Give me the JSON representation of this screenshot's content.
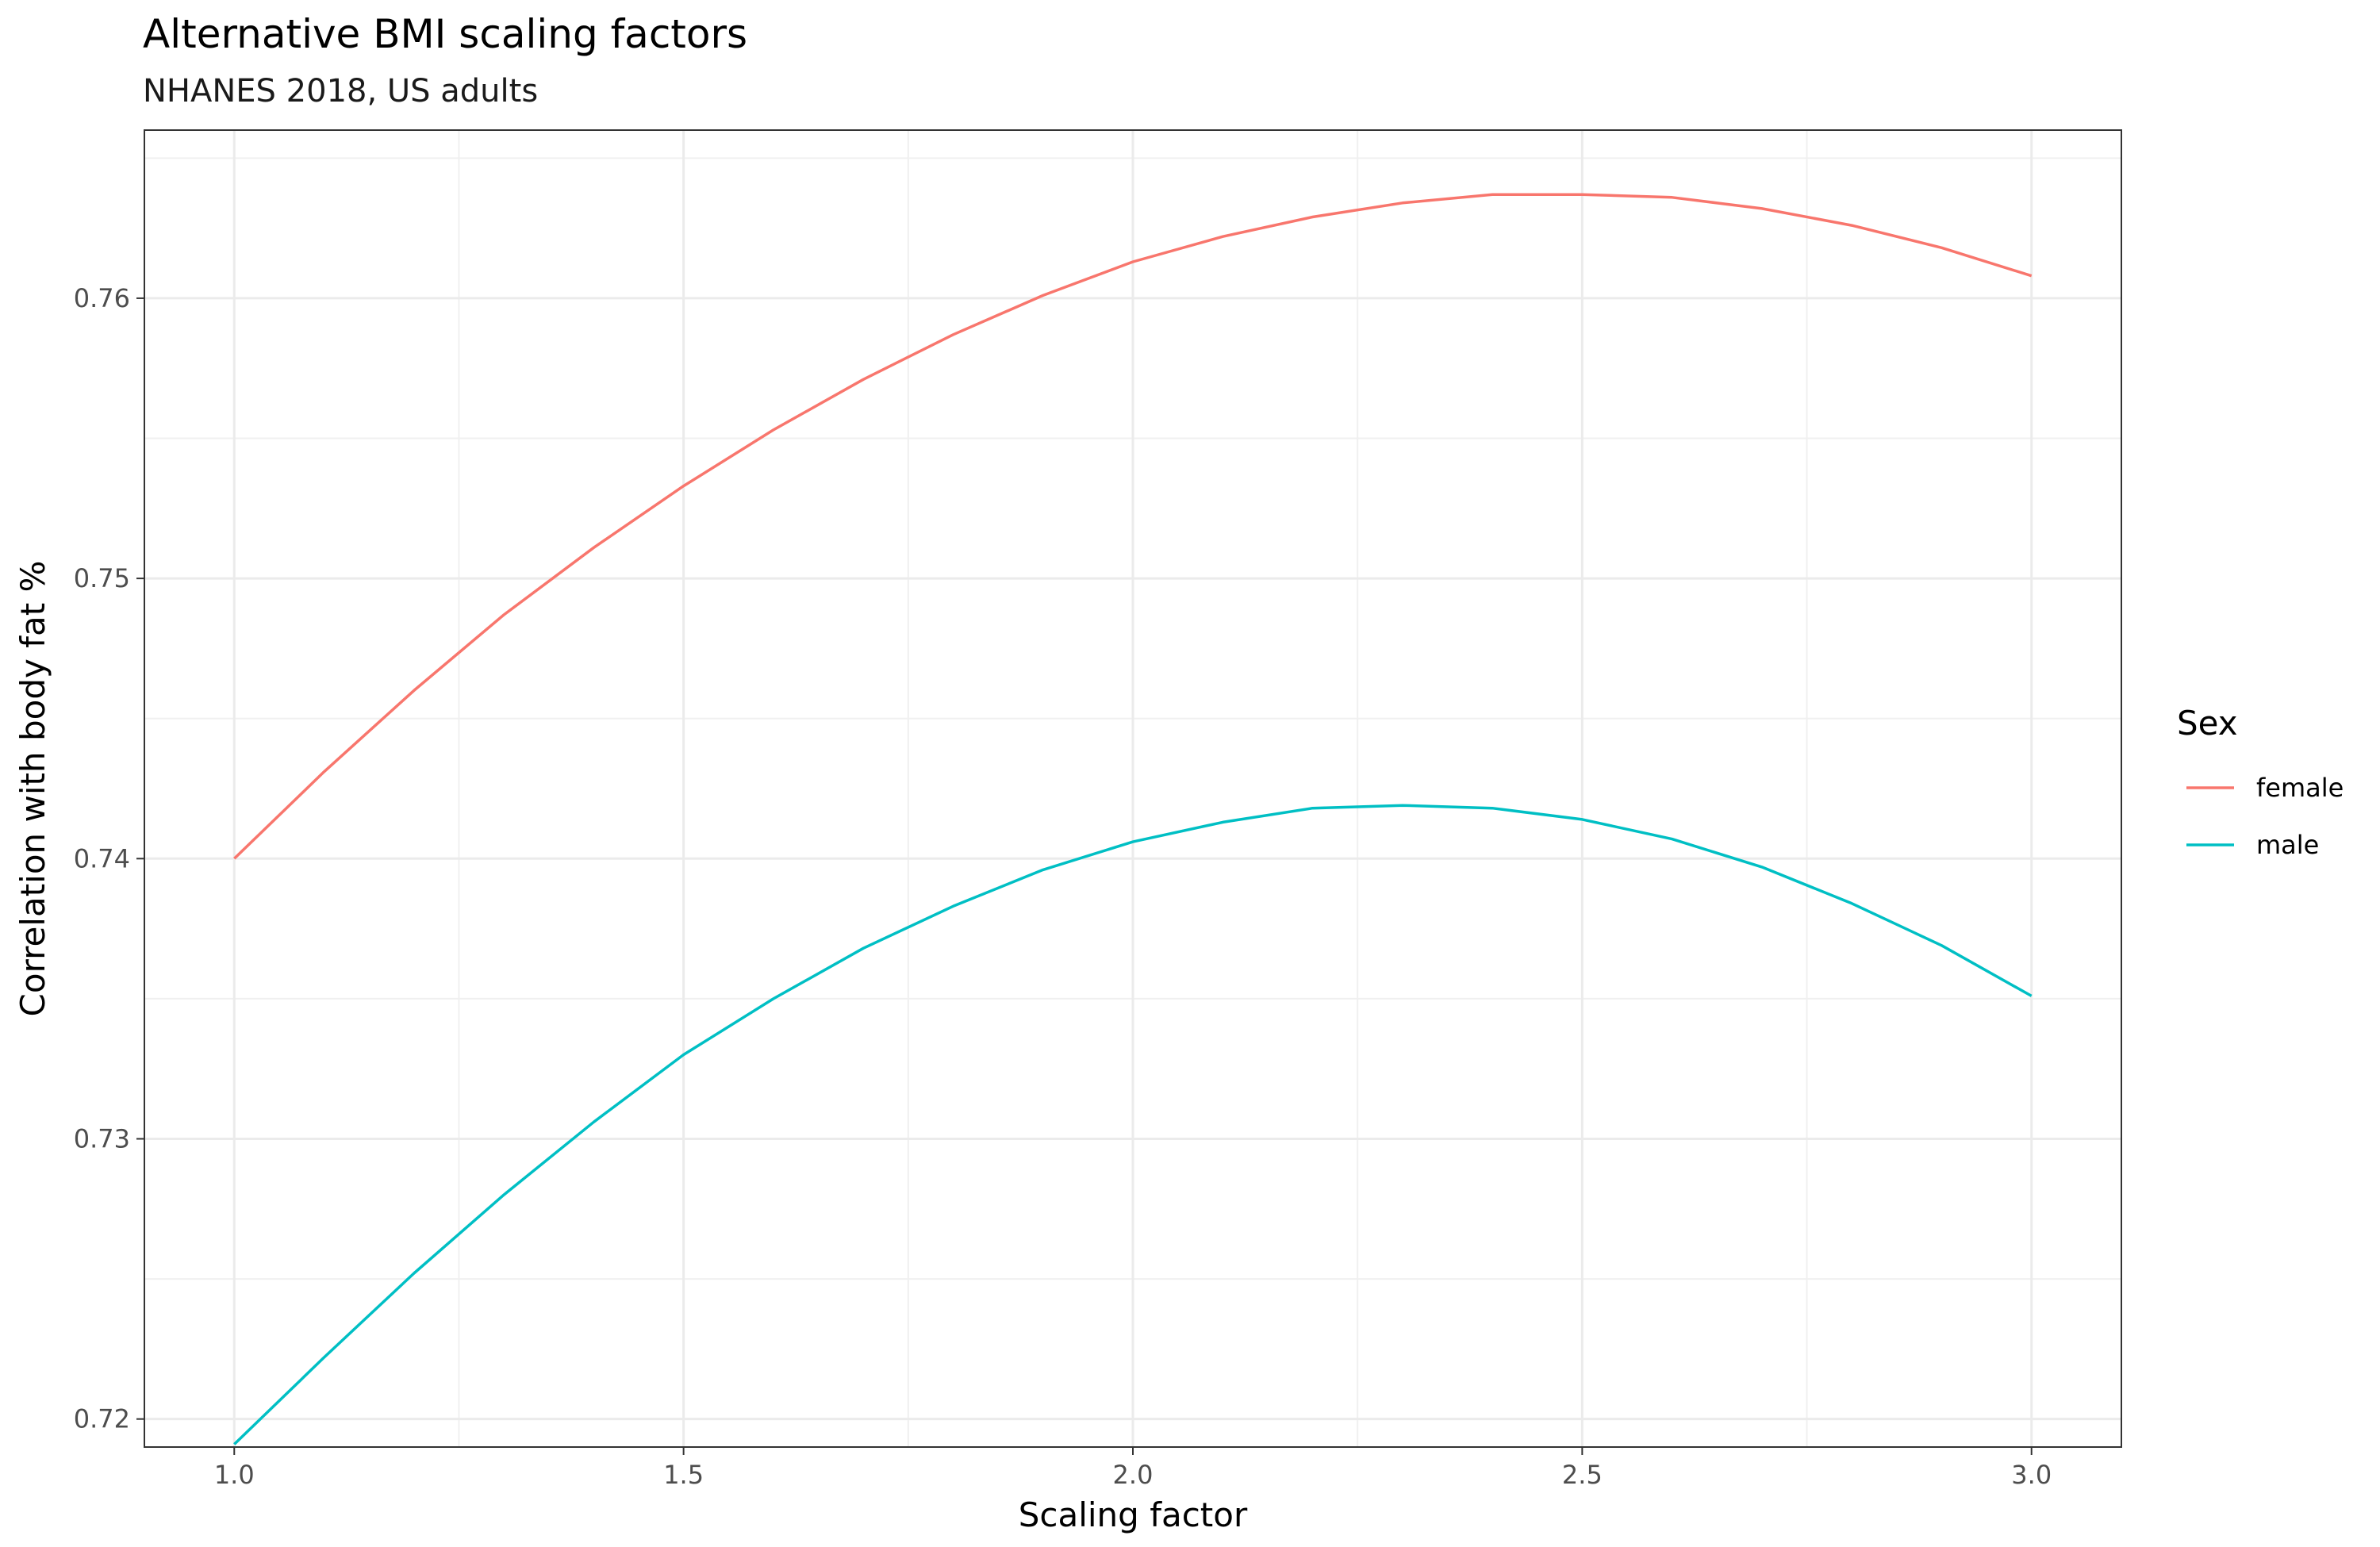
{
  "chart_data": {
    "type": "line",
    "title": "Alternative BMI scaling factors",
    "subtitle": "NHANES 2018, US adults",
    "xlabel": "Scaling factor",
    "ylabel": "Correlation with body fat %",
    "xlim": [
      0.9,
      3.1
    ],
    "ylim": [
      0.719,
      0.766
    ],
    "x_ticks": [
      1.0,
      1.5,
      2.0,
      2.5,
      3.0
    ],
    "x_tick_labels": [
      "1.0",
      "1.5",
      "2.0",
      "2.5",
      "3.0"
    ],
    "y_ticks": [
      0.72,
      0.73,
      0.74,
      0.75,
      0.76
    ],
    "y_tick_labels": [
      "0.72",
      "0.73",
      "0.74",
      "0.75",
      "0.76"
    ],
    "grid": true,
    "legend": {
      "title": "Sex",
      "position": "right"
    },
    "x": [
      1.0,
      1.1,
      1.2,
      1.3,
      1.4,
      1.5,
      1.6,
      1.7,
      1.8,
      1.9,
      2.0,
      2.1,
      2.2,
      2.3,
      2.4,
      2.5,
      2.6,
      2.7,
      2.8,
      2.9,
      3.0
    ],
    "series": [
      {
        "name": "female",
        "color": "#F8766D",
        "values": [
          0.74,
          0.7431,
          0.746,
          0.7487,
          0.7511,
          0.7533,
          0.7553,
          0.7571,
          0.7587,
          0.7601,
          0.7613,
          0.7622,
          0.7629,
          0.7634,
          0.7637,
          0.7637,
          0.7636,
          0.7632,
          0.7626,
          0.7618,
          0.7608
        ]
      },
      {
        "name": "male",
        "color": "#00BFC4",
        "values": [
          0.7191,
          0.7222,
          0.7252,
          0.728,
          0.7306,
          0.733,
          0.735,
          0.7368,
          0.7383,
          0.7396,
          0.7406,
          0.7413,
          0.7418,
          0.7419,
          0.7418,
          0.7414,
          0.7407,
          0.7397,
          0.7384,
          0.7369,
          0.7351
        ]
      }
    ]
  }
}
